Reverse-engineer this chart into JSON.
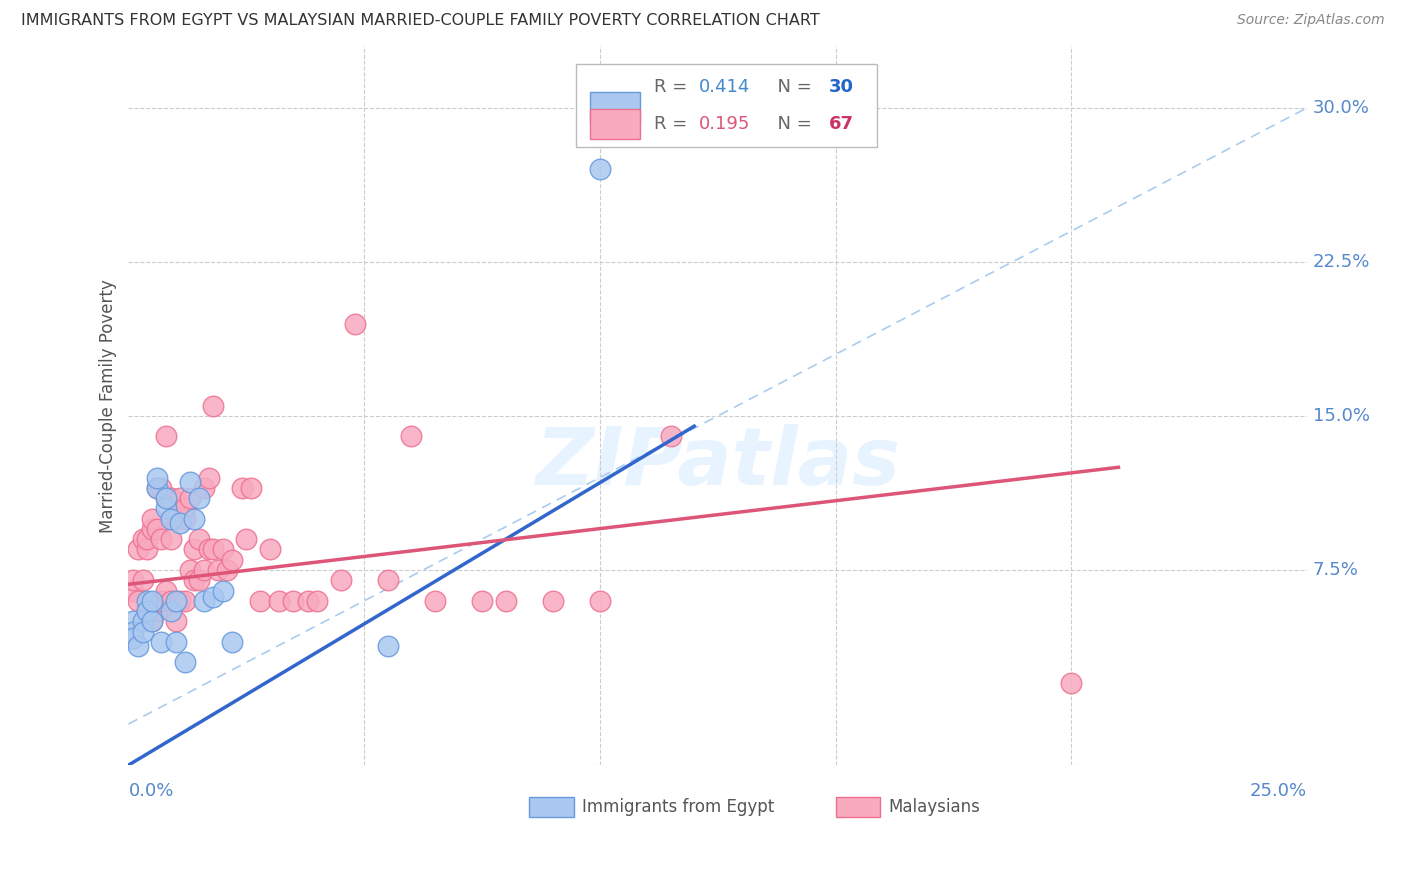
{
  "title": "IMMIGRANTS FROM EGYPT VS MALAYSIAN MARRIED-COUPLE FAMILY POVERTY CORRELATION CHART",
  "source": "Source: ZipAtlas.com",
  "ylabel": "Married-Couple Family Poverty",
  "ytick_vals": [
    0.075,
    0.15,
    0.225,
    0.3
  ],
  "ytick_labels": [
    "7.5%",
    "15.0%",
    "22.5%",
    "30.0%"
  ],
  "xlim": [
    0.0,
    0.25
  ],
  "ylim": [
    -0.02,
    0.33
  ],
  "egypt_color": "#aac8f0",
  "egypt_edge": "#6699dd",
  "malaysia_color": "#f8aabf",
  "malaysia_edge": "#ee7090",
  "trendline_egypt_color": "#3366cc",
  "trendline_malaysia_color": "#dd5577",
  "trendline_dashed_color": "#aaccee",
  "egypt_trendline_x": [
    0.0,
    0.12
  ],
  "egypt_trendline_y": [
    -0.02,
    0.145
  ],
  "malaysia_trendline_x": [
    0.0,
    0.21
  ],
  "malaysia_trendline_y": [
    0.068,
    0.125
  ],
  "dashed_line_x": [
    0.0,
    0.25
  ],
  "dashed_line_y": [
    0.0,
    0.3
  ],
  "egypt_points_x": [
    0.001,
    0.001,
    0.001,
    0.002,
    0.003,
    0.003,
    0.004,
    0.004,
    0.005,
    0.005,
    0.006,
    0.006,
    0.007,
    0.008,
    0.008,
    0.009,
    0.009,
    0.01,
    0.01,
    0.011,
    0.012,
    0.013,
    0.014,
    0.015,
    0.016,
    0.018,
    0.02,
    0.022,
    0.1,
    0.055
  ],
  "egypt_points_y": [
    0.05,
    0.045,
    0.042,
    0.038,
    0.05,
    0.045,
    0.06,
    0.055,
    0.05,
    0.06,
    0.115,
    0.12,
    0.04,
    0.105,
    0.11,
    0.1,
    0.055,
    0.06,
    0.04,
    0.098,
    0.03,
    0.118,
    0.1,
    0.11,
    0.06,
    0.062,
    0.065,
    0.04,
    0.27,
    0.038
  ],
  "malaysia_points_x": [
    0.001,
    0.001,
    0.002,
    0.002,
    0.003,
    0.003,
    0.004,
    0.004,
    0.004,
    0.005,
    0.005,
    0.005,
    0.006,
    0.006,
    0.006,
    0.007,
    0.007,
    0.007,
    0.008,
    0.008,
    0.008,
    0.009,
    0.009,
    0.009,
    0.01,
    0.01,
    0.011,
    0.011,
    0.012,
    0.012,
    0.012,
    0.013,
    0.013,
    0.014,
    0.014,
    0.015,
    0.015,
    0.016,
    0.016,
    0.017,
    0.017,
    0.018,
    0.018,
    0.019,
    0.02,
    0.021,
    0.022,
    0.024,
    0.025,
    0.026,
    0.028,
    0.03,
    0.032,
    0.035,
    0.038,
    0.04,
    0.045,
    0.048,
    0.055,
    0.06,
    0.065,
    0.075,
    0.08,
    0.09,
    0.1,
    0.115,
    0.2
  ],
  "malaysia_points_y": [
    0.065,
    0.07,
    0.06,
    0.085,
    0.07,
    0.09,
    0.055,
    0.085,
    0.09,
    0.05,
    0.095,
    0.1,
    0.055,
    0.095,
    0.115,
    0.06,
    0.09,
    0.115,
    0.065,
    0.11,
    0.14,
    0.06,
    0.09,
    0.11,
    0.05,
    0.1,
    0.06,
    0.11,
    0.06,
    0.1,
    0.105,
    0.075,
    0.11,
    0.07,
    0.085,
    0.07,
    0.09,
    0.075,
    0.115,
    0.085,
    0.12,
    0.085,
    0.155,
    0.075,
    0.085,
    0.075,
    0.08,
    0.115,
    0.09,
    0.115,
    0.06,
    0.085,
    0.06,
    0.06,
    0.06,
    0.06,
    0.07,
    0.195,
    0.07,
    0.14,
    0.06,
    0.06,
    0.06,
    0.06,
    0.06,
    0.14,
    0.02
  ]
}
